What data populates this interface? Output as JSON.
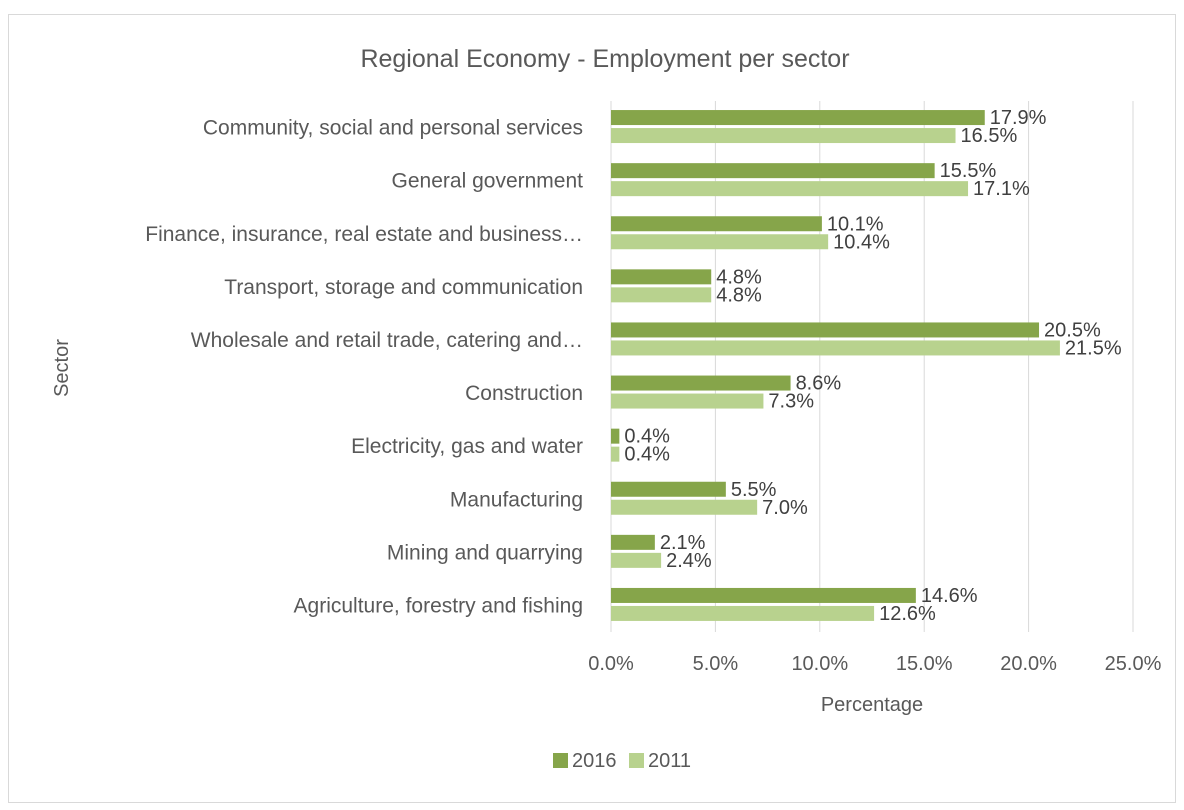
{
  "chart_data": {
    "type": "bar",
    "orientation": "horizontal",
    "title": "Regional Economy - Employment per sector",
    "xlabel": "Percentage",
    "ylabel": "Sector",
    "xlim": [
      0,
      25
    ],
    "x_ticks": [
      "0.0%",
      "5.0%",
      "10.0%",
      "15.0%",
      "20.0%",
      "25.0%"
    ],
    "grid": "vertical",
    "legend_position": "bottom",
    "categories": [
      "Community, social and personal services",
      "General government",
      "Finance, insurance, real estate and business…",
      "Transport, storage and communication",
      "Wholesale and retail trade, catering and…",
      "Construction",
      "Electricity, gas and water",
      "Manufacturing",
      "Mining and quarrying",
      "Agriculture, forestry and fishing"
    ],
    "series": [
      {
        "name": "2016",
        "color": "#86a54a",
        "values": [
          17.9,
          15.5,
          10.1,
          4.8,
          20.5,
          8.6,
          0.4,
          5.5,
          2.1,
          14.6
        ],
        "labels": [
          "17.9%",
          "15.5%",
          "10.1%",
          "4.8%",
          "20.5%",
          "8.6%",
          "0.4%",
          "5.5%",
          "2.1%",
          "14.6%"
        ]
      },
      {
        "name": "2011",
        "color": "#b8d28e",
        "values": [
          16.5,
          17.1,
          10.4,
          4.8,
          21.5,
          7.3,
          0.4,
          7.0,
          2.4,
          12.6
        ],
        "labels": [
          "16.5%",
          "17.1%",
          "10.4%",
          "4.8%",
          "21.5%",
          "7.3%",
          "0.4%",
          "7.0%",
          "2.4%",
          "12.6%"
        ]
      }
    ]
  }
}
